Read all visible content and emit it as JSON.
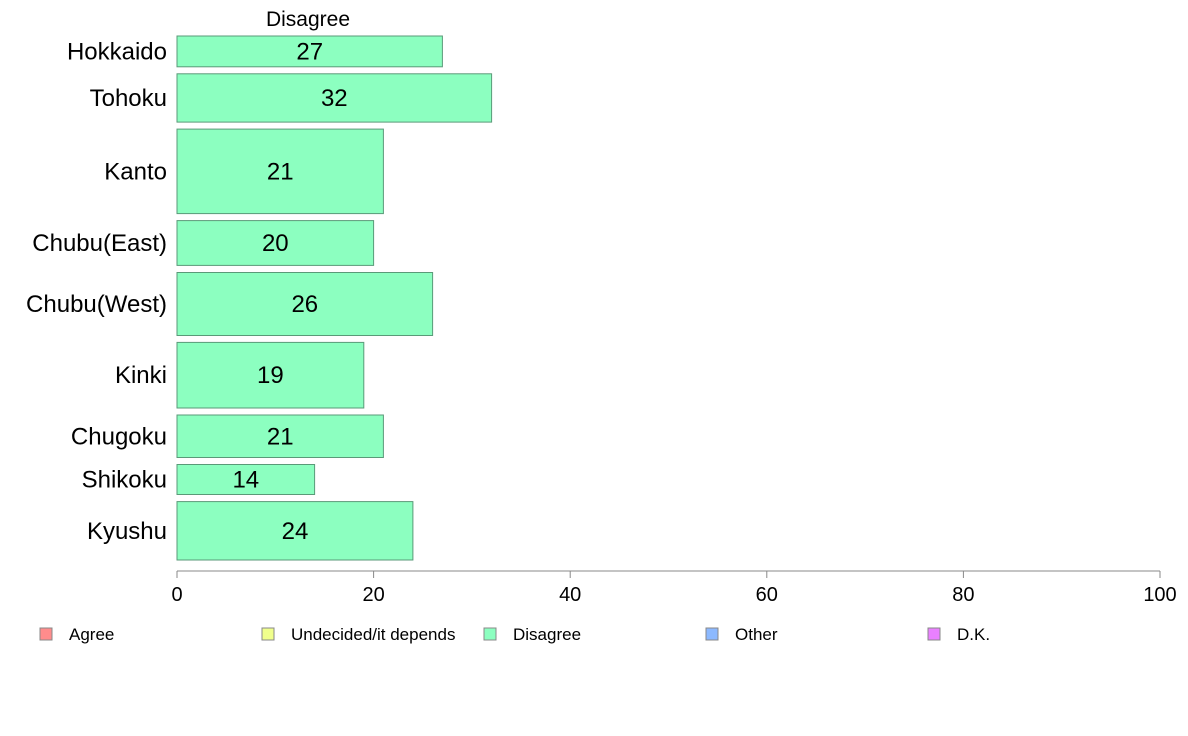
{
  "chart_data": {
    "type": "bar",
    "orientation": "horizontal",
    "title": "Disagree",
    "categories": [
      "Hokkaido",
      "Tohoku",
      "Kanto",
      "Chubu(East)",
      "Chubu(West)",
      "Kinki",
      "Chugoku",
      "Shikoku",
      "Kyushu"
    ],
    "bar_thickness_share": [
      0.0537,
      0.0843,
      0.1473,
      0.0782,
      0.1098,
      0.1144,
      0.0741,
      0.0524,
      0.1019
    ],
    "series": [
      {
        "name": "Disagree",
        "values": [
          27,
          32,
          21,
          20,
          26,
          19,
          21,
          14,
          24
        ],
        "color": "#8cffc0"
      }
    ],
    "value_labels": [
      "27",
      "32",
      "21",
      "20",
      "26",
      "19",
      "21",
      "14",
      "24"
    ],
    "xlim": [
      0,
      100
    ],
    "xticks": [
      0,
      20,
      40,
      60,
      80,
      100
    ],
    "xtick_labels": [
      "0",
      "20",
      "40",
      "60",
      "80",
      "100"
    ],
    "grid": false,
    "legend": {
      "position": "bottom",
      "items": [
        {
          "label": "Agree",
          "color": "#ff8c8c"
        },
        {
          "label": "Undecided/it depends",
          "color": "#f0ff8c"
        },
        {
          "label": "Disagree",
          "color": "#8cffc0"
        },
        {
          "label": "Other",
          "color": "#8cb9ff"
        },
        {
          "label": "D.K.",
          "color": "#ea80ff"
        }
      ]
    },
    "colors": {
      "bar_stroke": "#5a9a78",
      "axis": "#888888"
    }
  }
}
